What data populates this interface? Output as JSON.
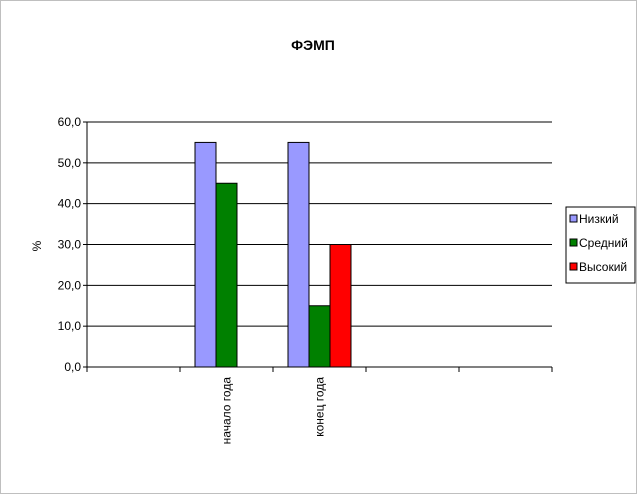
{
  "chart_data": {
    "type": "bar",
    "title": "ФЭМП",
    "ylabel": "%",
    "xlabel": "",
    "categories": [
      "",
      "начало года",
      "конец года",
      "",
      ""
    ],
    "series": [
      {
        "name": "Низкий",
        "color": "#9999ff",
        "values": [
          null,
          55,
          55,
          null,
          null
        ]
      },
      {
        "name": "Средний",
        "color": "#008000",
        "values": [
          null,
          45,
          15,
          null,
          null
        ]
      },
      {
        "name": "Высокий",
        "color": "#ff0000",
        "values": [
          null,
          0,
          30,
          null,
          null
        ]
      }
    ],
    "ylim": [
      0,
      60
    ],
    "yticks": [
      0,
      10,
      20,
      30,
      40,
      50,
      60
    ],
    "ytick_labels": [
      "0,0",
      "10,0",
      "20,0",
      "30,0",
      "40,0",
      "50,0",
      "60,0"
    ],
    "grid": true,
    "legend_position": "right"
  }
}
